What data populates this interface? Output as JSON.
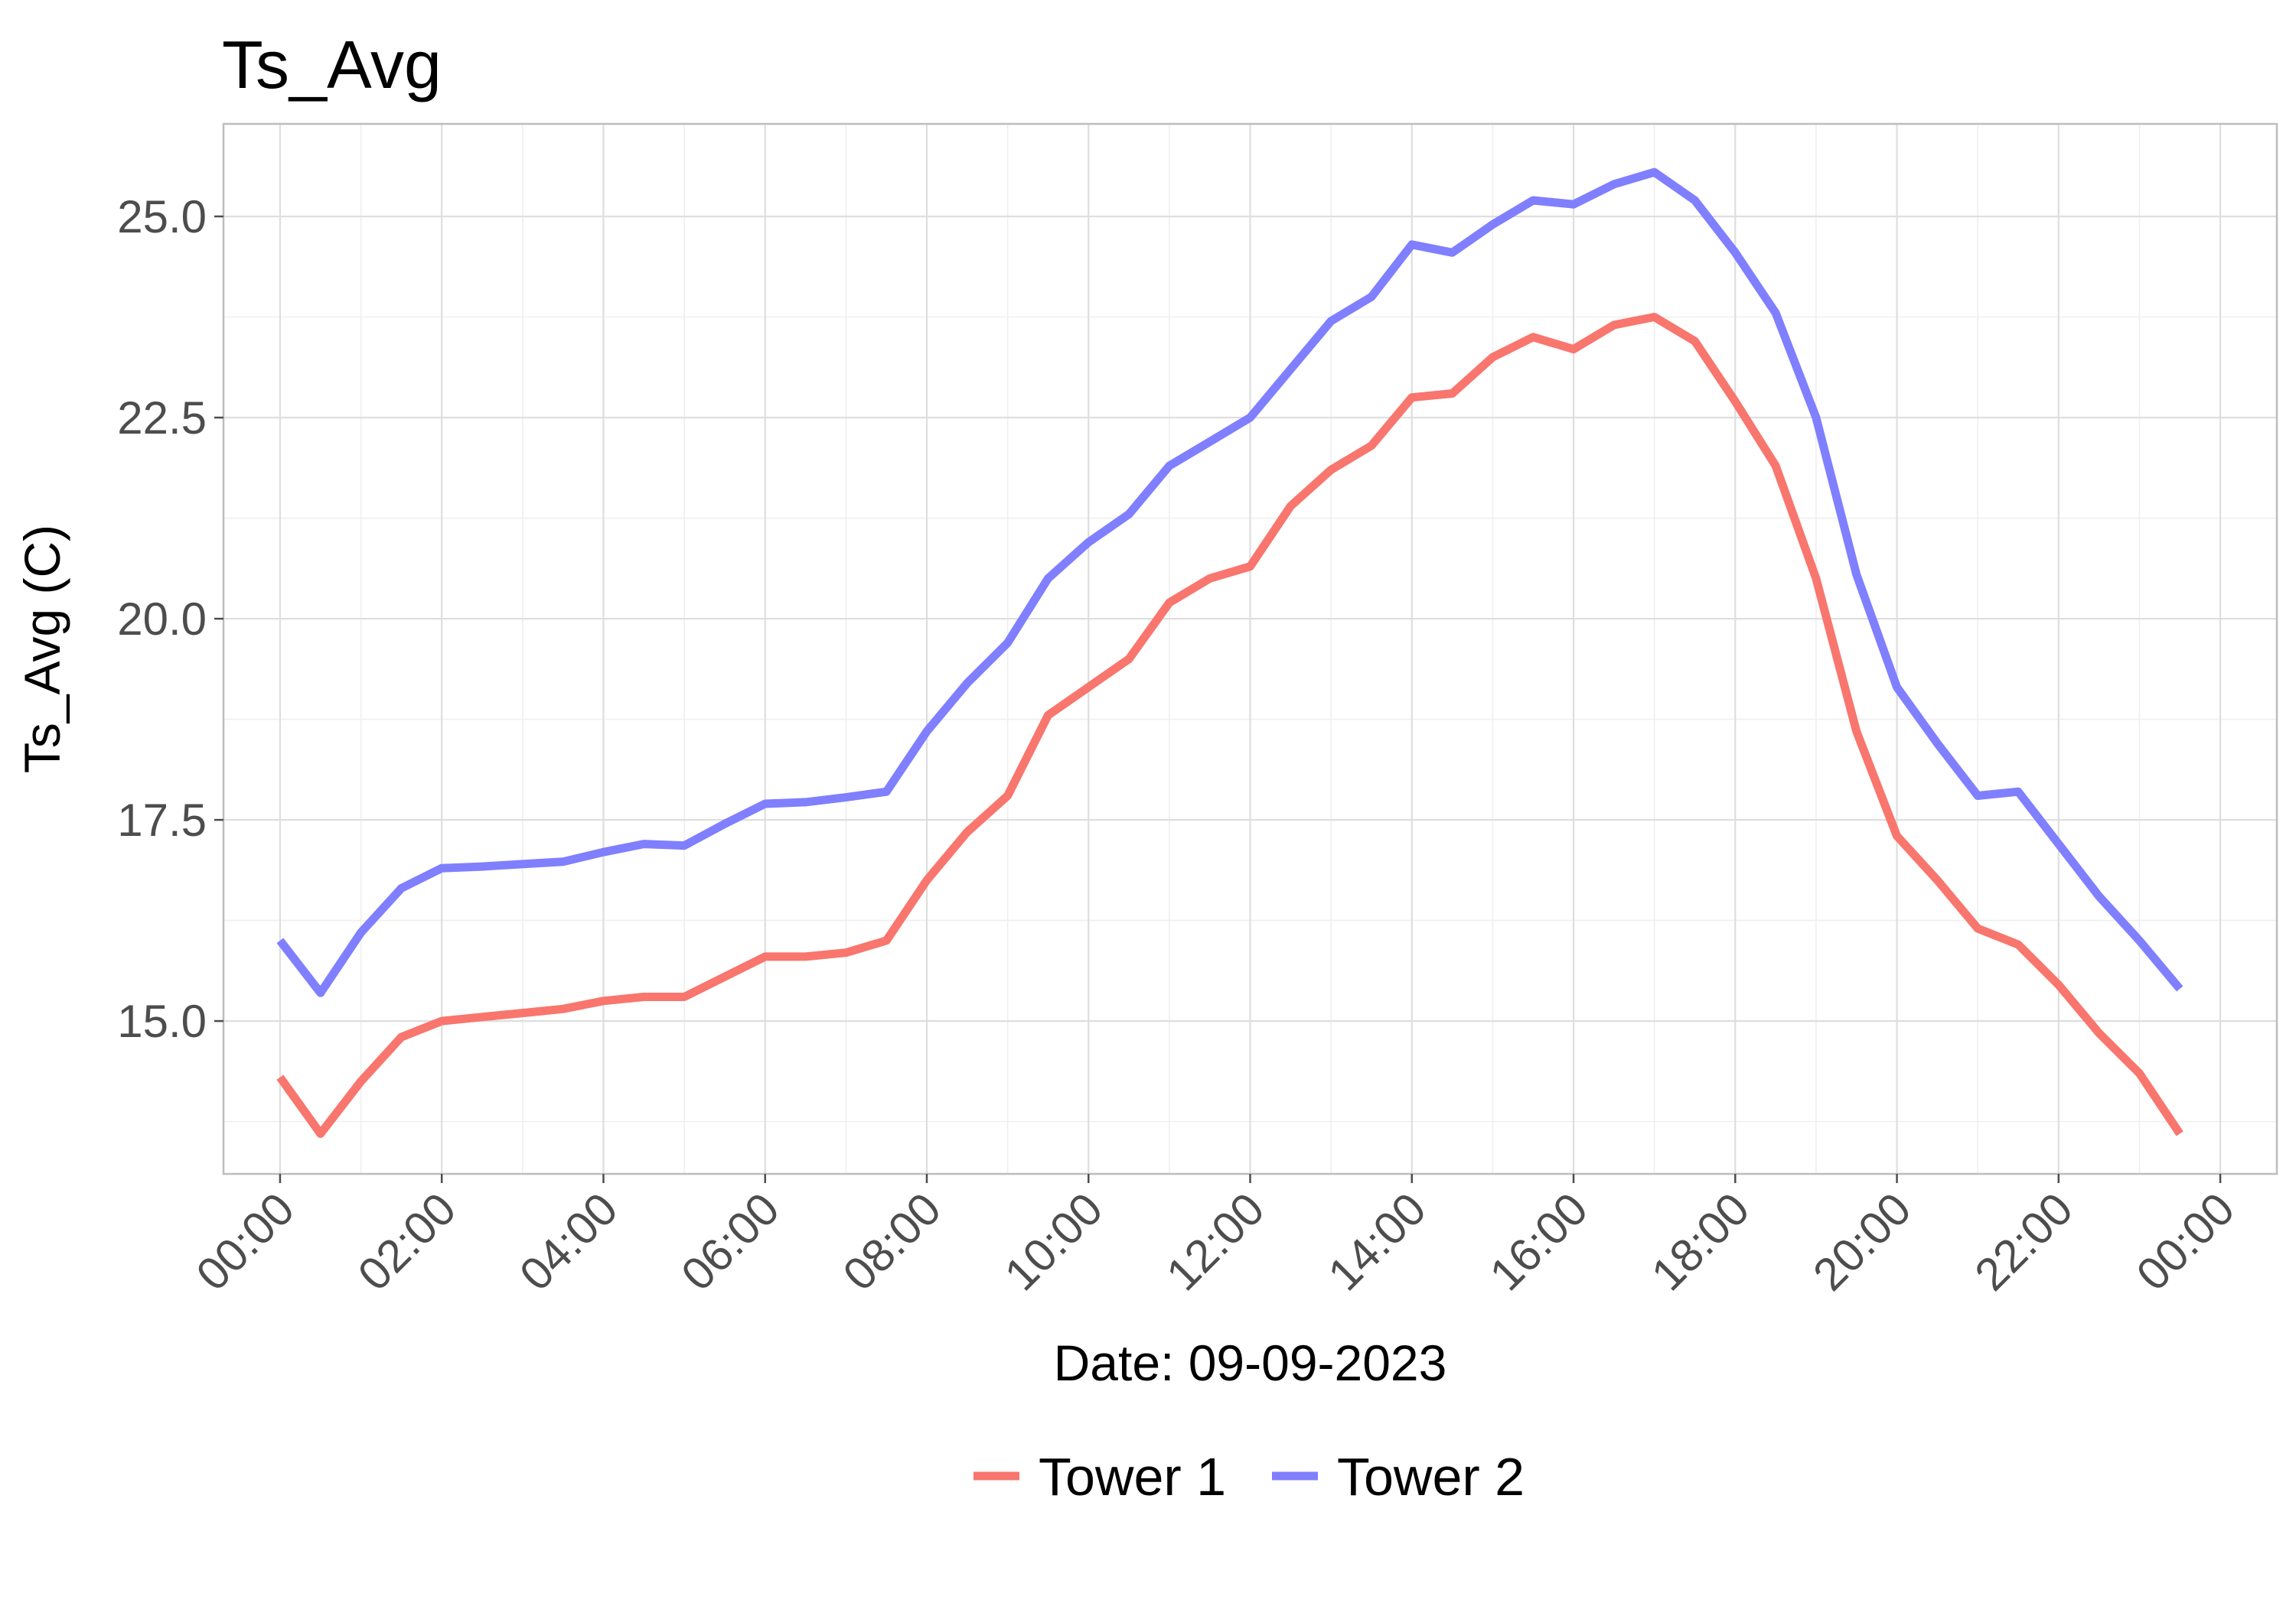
{
  "chart_data": {
    "type": "line",
    "title": "Ts_Avg",
    "xlabel": "Date: 09-09-2023",
    "ylabel": "Ts_Avg (C)",
    "x": [
      "00:00",
      "00:30",
      "01:00",
      "01:30",
      "02:00",
      "02:30",
      "03:00",
      "03:30",
      "04:00",
      "04:30",
      "05:00",
      "05:30",
      "06:00",
      "06:30",
      "07:00",
      "07:30",
      "08:00",
      "08:30",
      "09:00",
      "09:30",
      "10:00",
      "10:30",
      "11:00",
      "11:30",
      "12:00",
      "12:30",
      "13:00",
      "13:30",
      "14:00",
      "14:30",
      "15:00",
      "15:30",
      "16:00",
      "16:30",
      "17:00",
      "17:30",
      "18:00",
      "18:30",
      "19:00",
      "19:30",
      "20:00",
      "20:30",
      "21:00",
      "21:30",
      "22:00",
      "22:30",
      "23:00",
      "23:30"
    ],
    "x_tick_labels": [
      "00:00",
      "02:00",
      "04:00",
      "06:00",
      "08:00",
      "10:00",
      "12:00",
      "14:00",
      "16:00",
      "18:00",
      "20:00",
      "22:00",
      "00:00"
    ],
    "y_tick_labels": [
      "15.0",
      "17.5",
      "20.0",
      "22.5",
      "25.0"
    ],
    "y_ticks": [
      15.0,
      17.5,
      20.0,
      22.5,
      25.0
    ],
    "xlim_hours": [
      -0.7,
      24.7
    ],
    "ylim": [
      13.1,
      26.15
    ],
    "grid": true,
    "legend_position": "bottom",
    "series": [
      {
        "name": "Tower 1",
        "color": "#F8766D",
        "values": [
          14.3,
          13.6,
          14.25,
          14.8,
          15.0,
          15.05,
          15.1,
          15.15,
          15.25,
          15.3,
          15.3,
          15.55,
          15.8,
          15.8,
          15.85,
          16.0,
          16.75,
          17.35,
          17.8,
          18.8,
          19.15,
          19.5,
          20.2,
          20.5,
          20.65,
          21.4,
          21.85,
          22.15,
          22.75,
          22.8,
          23.25,
          23.5,
          23.35,
          23.65,
          23.75,
          23.45,
          22.7,
          21.9,
          20.5,
          18.6,
          17.3,
          16.75,
          16.15,
          15.95,
          15.45,
          14.85,
          14.35,
          13.6
        ]
      },
      {
        "name": "Tower 2",
        "color": "#7F7FFF",
        "values": [
          16.0,
          15.35,
          16.1,
          16.65,
          16.9,
          16.92,
          16.95,
          16.98,
          17.1,
          17.2,
          17.18,
          17.45,
          17.7,
          17.72,
          17.78,
          17.85,
          18.6,
          19.2,
          19.7,
          20.5,
          20.95,
          21.3,
          21.9,
          22.2,
          22.5,
          23.1,
          23.7,
          24.0,
          24.65,
          24.55,
          24.9,
          25.2,
          25.15,
          25.4,
          25.55,
          25.2,
          24.55,
          23.8,
          22.5,
          20.55,
          19.15,
          18.45,
          17.8,
          17.85,
          17.2,
          16.55,
          16.0,
          15.4
        ]
      }
    ]
  }
}
